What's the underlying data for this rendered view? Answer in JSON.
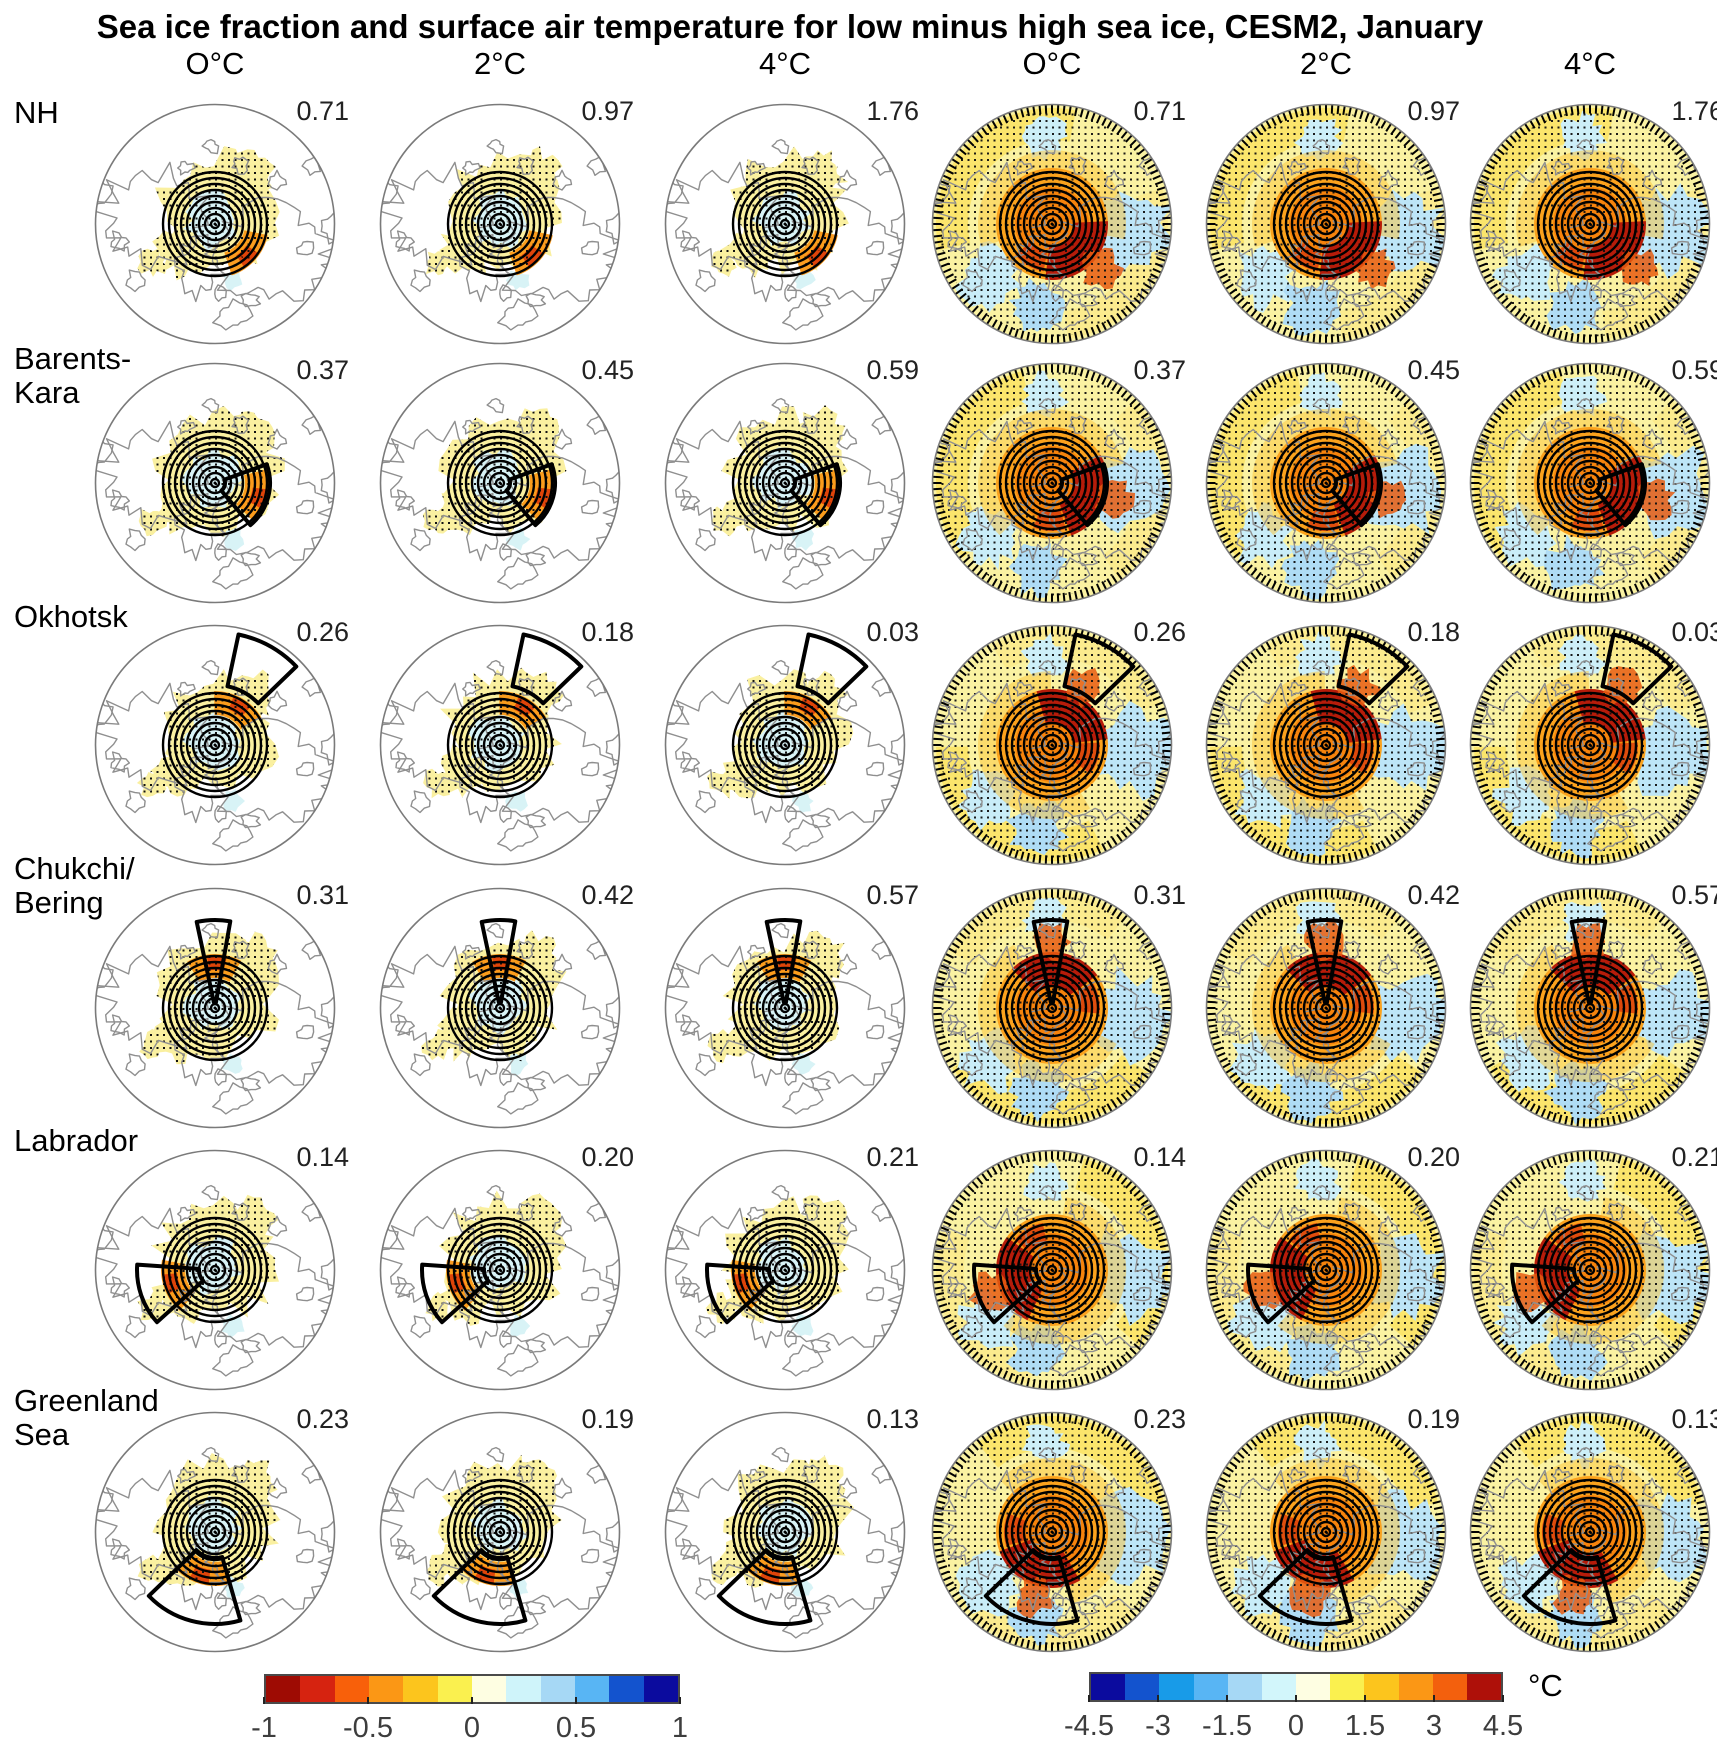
{
  "title": "Sea ice fraction and surface air temperature for low minus high sea ice, CESM2, January",
  "column_headers_left": [
    "O°C",
    "2°C",
    "4°C"
  ],
  "column_headers_right": [
    "O°C",
    "2°C",
    "4°C"
  ],
  "rows": [
    {
      "label": "NH",
      "label_lines": [
        "NH"
      ],
      "values": [
        "0.71",
        "0.97",
        "1.76"
      ]
    },
    {
      "label": "Barents-Kara",
      "label_lines": [
        "Barents-",
        "Kara"
      ],
      "values": [
        "0.37",
        "0.45",
        "0.59"
      ]
    },
    {
      "label": "Okhotsk",
      "label_lines": [
        "Okhotsk"
      ],
      "values": [
        "0.26",
        "0.18",
        "0.03"
      ]
    },
    {
      "label": "Chukchi/Bering",
      "label_lines": [
        "Chukchi/",
        "Bering"
      ],
      "values": [
        "0.31",
        "0.42",
        "0.57"
      ]
    },
    {
      "label": "Labrador",
      "label_lines": [
        "Labrador"
      ],
      "values": [
        "0.14",
        "0.20",
        "0.21"
      ]
    },
    {
      "label": "Greenland Sea",
      "label_lines": [
        "Greenland",
        "Sea"
      ],
      "values": [
        "0.23",
        "0.19",
        "0.13"
      ]
    }
  ],
  "colorbar_left": {
    "tick_labels": [
      "-1",
      "-0.5",
      "0",
      "0.5",
      "1"
    ],
    "colors": [
      "#9E0B03",
      "#D62310",
      "#F8600A",
      "#FB9715",
      "#FCC51D",
      "#FAF04F",
      "#FEFEE2",
      "#CFF4FA",
      "#A6D8F5",
      "#58B5F4",
      "#1353CE",
      "#0B0B9E"
    ]
  },
  "colorbar_right": {
    "tick_labels": [
      "-4.5",
      "-3",
      "-1.5",
      "0",
      "1.5",
      "3",
      "4.5"
    ],
    "unit": "°C",
    "colors": [
      "#0B0B9E",
      "#1353CE",
      "#189BE8",
      "#58B5F4",
      "#A6D8F5",
      "#D2F6FB",
      "#FEFEE2",
      "#FAF04F",
      "#FCC51D",
      "#FB9715",
      "#F3600D",
      "#AE1009"
    ]
  },
  "chart_data": {
    "type": "heatmap",
    "title": "Sea ice fraction and surface air temperature for low minus high sea ice, CESM2, January",
    "panel_variables": [
      "Sea ice fraction",
      "Surface air temperature"
    ],
    "columns": [
      "O°C",
      "2°C",
      "4°C"
    ],
    "regions": [
      "NH",
      "Barents-Kara",
      "Okhotsk",
      "Chukchi/Bering",
      "Labrador",
      "Greenland Sea"
    ],
    "values": [
      [
        0.71,
        0.97,
        1.76
      ],
      [
        0.37,
        0.45,
        0.59
      ],
      [
        0.26,
        0.18,
        0.03
      ],
      [
        0.31,
        0.42,
        0.57
      ],
      [
        0.14,
        0.2,
        0.21
      ],
      [
        0.23,
        0.19,
        0.13
      ]
    ],
    "note": "The same value labels appear on both the sea-ice-fraction panel (left 3 columns) and the air-temperature panel (right 3 columns)",
    "colorbars": [
      {
        "variable": "Sea ice fraction",
        "range": [
          -1,
          1
        ],
        "ticks": [
          -1,
          -0.5,
          0,
          0.5,
          1
        ],
        "orientation": "red-to-blue"
      },
      {
        "variable": "Surface air temperature",
        "range": [
          -4.5,
          4.5
        ],
        "ticks": [
          -4.5,
          -3,
          -1.5,
          0,
          1.5,
          3,
          4.5
        ],
        "unit": "°C",
        "orientation": "blue-to-red"
      }
    ],
    "layout": "6 regions (rows) × 3 warming levels (columns) × 2 variables (left/right panel groups), polar stereographic maps with regional sector outlines"
  }
}
